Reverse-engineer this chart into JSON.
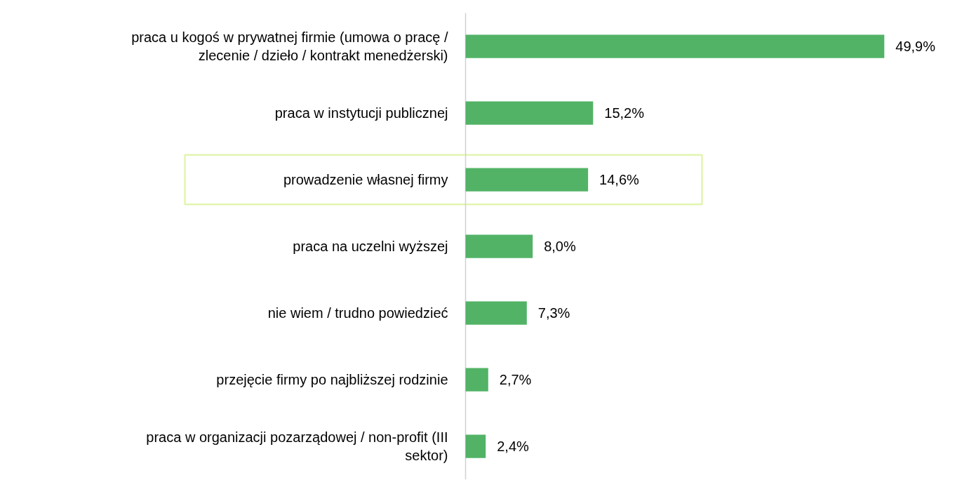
{
  "chart_data": {
    "type": "bar",
    "orientation": "horizontal",
    "categories": [
      "praca u kogoś w prywatnej firmie (umowa o pracę / zlecenie / dzieło / kontrakt menedżerski)",
      "praca w instytucji publicznej",
      "prowadzenie własnej firmy",
      "praca na uczelni wyższej",
      "nie wiem / trudno powiedzieć",
      "przejęcie firmy po najbliższej rodzinie",
      "praca w organizacji pozarządowej / non-profit (III sektor)"
    ],
    "values": [
      49.9,
      15.2,
      14.6,
      8.0,
      7.3,
      2.7,
      2.4
    ],
    "value_labels": [
      "49,9%",
      "15,2%",
      "14,6%",
      "8,0%",
      "7,3%",
      "2,7%",
      "2,4%"
    ],
    "color": "#52b366",
    "grid": false
  }
}
